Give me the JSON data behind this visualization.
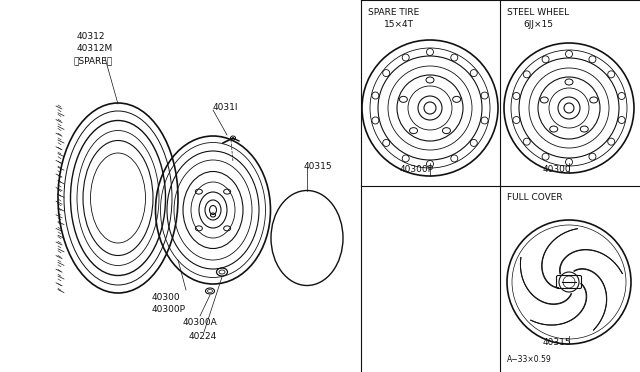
{
  "bg_color": "#ffffff",
  "line_color": "#111111",
  "spare_tire_label": "SPARE TIRE",
  "spare_tire_size": "15×4T",
  "spare_tire_part": "40300P",
  "steel_wheel_label": "STEEL WHEEL",
  "steel_wheel_size": "6JJ×15",
  "steel_wheel_part": "40300",
  "full_cover_label": "FULL COVER",
  "full_cover_part": "40315",
  "version_note": "A−33×0.59",
  "label_40312": "40312",
  "label_40312M": "40312M",
  "label_spare": "（SPARE）",
  "label_4031I": "4031I",
  "label_40315": "40315",
  "label_40300": "40300",
  "label_40300P": "40300P",
  "label_40300A": "40300A",
  "label_40224": "40224"
}
